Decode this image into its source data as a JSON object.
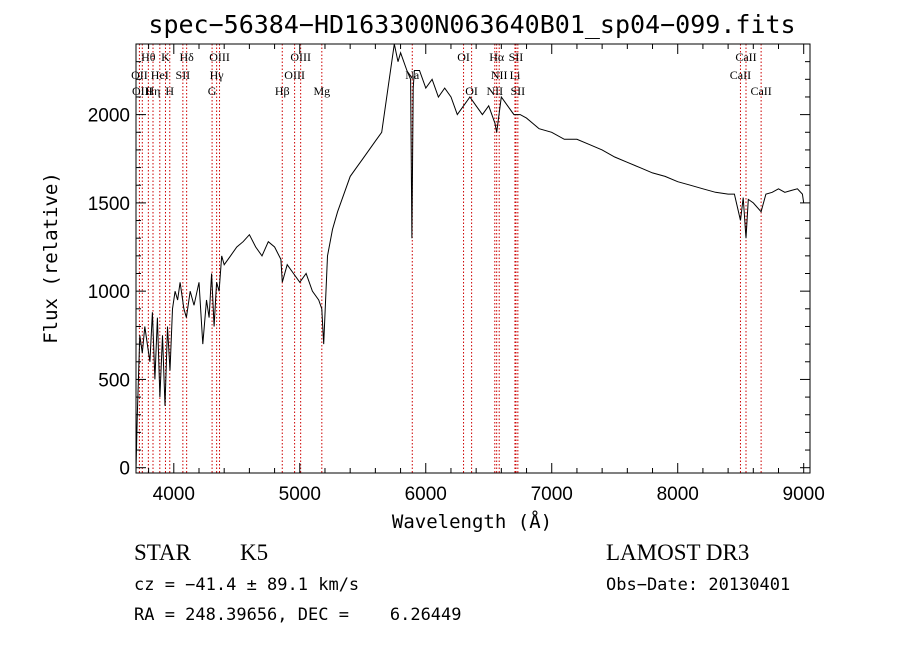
{
  "chart_data": {
    "type": "line",
    "title": "spec−56384−HD163300N063640B01_sp04−099.fits",
    "xlabel": "Wavelength (Å)",
    "ylabel": "Flux (relative)",
    "xlim": [
      3700,
      9050
    ],
    "ylim": [
      -30,
      2400
    ],
    "xticks": [
      4000,
      5000,
      6000,
      7000,
      8000,
      9000
    ],
    "yticks": [
      0,
      500,
      1000,
      1500,
      2000
    ],
    "grid": false,
    "series": [
      {
        "x": [
          3700,
          3710,
          3730,
          3750,
          3770,
          3790,
          3810,
          3830,
          3850,
          3870,
          3890,
          3910,
          3930,
          3950,
          3970,
          3990,
          4010,
          4030,
          4050,
          4080,
          4100,
          4130,
          4160,
          4200,
          4230,
          4260,
          4280,
          4300,
          4320,
          4340,
          4360,
          4380,
          4400,
          4450,
          4500,
          4550,
          4600,
          4650,
          4700,
          4750,
          4800,
          4850,
          4861,
          4900,
          4950,
          5000,
          5050,
          5100,
          5150,
          5175,
          5190,
          5220,
          5260,
          5300,
          5350,
          5400,
          5450,
          5500,
          5550,
          5600,
          5650,
          5700,
          5750,
          5780,
          5800,
          5850,
          5880,
          5890,
          5900,
          5910,
          5950,
          6000,
          6050,
          6100,
          6150,
          6200,
          6250,
          6300,
          6350,
          6400,
          6450,
          6500,
          6550,
          6563,
          6600,
          6650,
          6700,
          6750,
          6800,
          6850,
          6900,
          7000,
          7100,
          7200,
          7300,
          7400,
          7500,
          7600,
          7700,
          7800,
          7900,
          8000,
          8100,
          8200,
          8300,
          8400,
          8450,
          8498,
          8520,
          8542,
          8560,
          8600,
          8662,
          8700,
          8750,
          8800,
          8850,
          8900,
          8950,
          8990,
          9000
        ],
        "y": [
          -20,
          300,
          750,
          650,
          800,
          700,
          600,
          880,
          500,
          850,
          400,
          750,
          350,
          800,
          550,
          900,
          1000,
          950,
          1050,
          900,
          850,
          1000,
          920,
          1050,
          700,
          950,
          850,
          1100,
          800,
          1050,
          1000,
          1200,
          1150,
          1200,
          1250,
          1280,
          1320,
          1250,
          1200,
          1280,
          1250,
          1180,
          1050,
          1150,
          1100,
          1050,
          1100,
          1000,
          950,
          900,
          700,
          1200,
          1350,
          1450,
          1550,
          1650,
          1700,
          1750,
          1800,
          1850,
          1900,
          2150,
          2400,
          2300,
          2350,
          2250,
          2200,
          1300,
          2150,
          2250,
          2250,
          2150,
          2200,
          2100,
          2150,
          2100,
          2000,
          2050,
          2100,
          2050,
          2000,
          2050,
          1950,
          1900,
          2100,
          2050,
          2000,
          2000,
          1980,
          1950,
          1920,
          1900,
          1860,
          1860,
          1830,
          1800,
          1760,
          1730,
          1700,
          1670,
          1650,
          1620,
          1600,
          1580,
          1560,
          1550,
          1550,
          1400,
          1530,
          1300,
          1520,
          1500,
          1450,
          1550,
          1560,
          1580,
          1560,
          1570,
          1580,
          1550,
          1500
        ]
      }
    ],
    "lines": [
      {
        "label": "Hθ",
        "x": 3798,
        "row": 0
      },
      {
        "label": "K",
        "x": 3934,
        "row": 0
      },
      {
        "label": "Hδ",
        "x": 4102,
        "row": 0
      },
      {
        "label": "OIII",
        "x": 4363,
        "row": 0
      },
      {
        "label": "OIII",
        "x": 5007,
        "row": 0
      },
      {
        "label": "OI",
        "x": 6300,
        "row": 0
      },
      {
        "label": "Hα",
        "x": 6563,
        "row": 0
      },
      {
        "label": "SII",
        "x": 6716,
        "row": 0
      },
      {
        "label": "CaII",
        "x": 8542,
        "row": 0
      },
      {
        "label": "OII",
        "x": 3727,
        "row": 1
      },
      {
        "label": "HeI",
        "x": 3889,
        "row": 1
      },
      {
        "label": "SII",
        "x": 4072,
        "row": 1
      },
      {
        "label": "Hγ",
        "x": 4340,
        "row": 1
      },
      {
        "label": "OIII",
        "x": 4959,
        "row": 1
      },
      {
        "label": "Na",
        "x": 5893,
        "row": 1
      },
      {
        "label": "NII",
        "x": 6583,
        "row": 1
      },
      {
        "label": "Li",
        "x": 6708,
        "row": 1
      },
      {
        "label": "CaII",
        "x": 8498,
        "row": 1
      },
      {
        "label": "OIII",
        "x": 3750,
        "row": 2
      },
      {
        "label": "Hη",
        "x": 3835,
        "row": 2
      },
      {
        "label": "H",
        "x": 3968,
        "row": 2
      },
      {
        "label": "G",
        "x": 4304,
        "row": 2
      },
      {
        "label": "Hβ",
        "x": 4861,
        "row": 2
      },
      {
        "label": "Mg",
        "x": 5175,
        "row": 2
      },
      {
        "label": "OI",
        "x": 6364,
        "row": 2
      },
      {
        "label": "NII",
        "x": 6548,
        "row": 2
      },
      {
        "label": "SII",
        "x": 6731,
        "row": 2
      },
      {
        "label": "CaII",
        "x": 8662,
        "row": 2
      }
    ]
  },
  "info": {
    "class": "STAR",
    "subclass": "K5",
    "survey": "LAMOST DR3",
    "cz": "cz = −41.4 ± 89.1 km/s",
    "obsdate": "Obs−Date: 20130401",
    "radec": "RA = 248.39656, DEC =    6.26449"
  },
  "colors": {
    "spectrum": "#000000",
    "line_markers": "#cc0000"
  }
}
